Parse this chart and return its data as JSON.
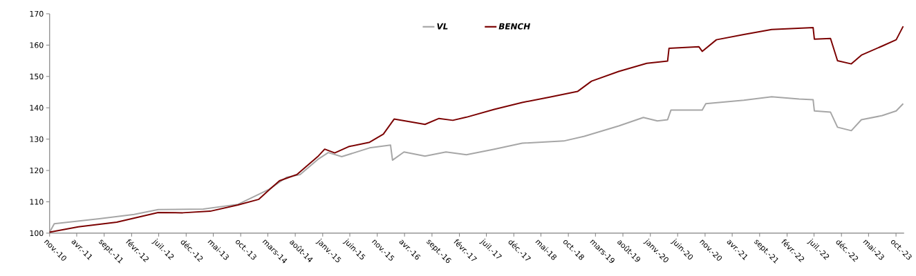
{
  "chart_data": {
    "type": "line",
    "legend": "top",
    "grid": false,
    "marker": "none",
    "line_style": "solid",
    "xlim": [
      "2010-11-01",
      "2023-11-15"
    ],
    "ylim": [
      100,
      170
    ],
    "yticks": [
      100,
      110,
      120,
      130,
      140,
      150,
      160,
      170
    ],
    "xticks": [
      {
        "value": "2010-11",
        "label": "nov.-10"
      },
      {
        "value": "2011-04",
        "label": "avr.-11"
      },
      {
        "value": "2011-09",
        "label": "sept.-11"
      },
      {
        "value": "2012-02",
        "label": "févr.-12"
      },
      {
        "value": "2012-07",
        "label": "juil.-12"
      },
      {
        "value": "2012-12",
        "label": "déc.-12"
      },
      {
        "value": "2013-05",
        "label": "mai-13"
      },
      {
        "value": "2013-10",
        "label": "oct.-13"
      },
      {
        "value": "2014-03",
        "label": "mars-14"
      },
      {
        "value": "2014-08",
        "label": "août-14"
      },
      {
        "value": "2015-01",
        "label": "janv.-15"
      },
      {
        "value": "2015-06",
        "label": "juin-15"
      },
      {
        "value": "2015-11",
        "label": "nov.-15"
      },
      {
        "value": "2016-04",
        "label": "avr.-16"
      },
      {
        "value": "2016-09",
        "label": "sept.-16"
      },
      {
        "value": "2017-02",
        "label": "févr.-17"
      },
      {
        "value": "2017-07",
        "label": "juil.-17"
      },
      {
        "value": "2017-12",
        "label": "déc.-17"
      },
      {
        "value": "2018-05",
        "label": "mai-18"
      },
      {
        "value": "2018-10",
        "label": "oct.-18"
      },
      {
        "value": "2019-03",
        "label": "mars-19"
      },
      {
        "value": "2019-08",
        "label": "août-19"
      },
      {
        "value": "2020-01",
        "label": "janv.-20"
      },
      {
        "value": "2020-06",
        "label": "juin-20"
      },
      {
        "value": "2020-11",
        "label": "nov.-20"
      },
      {
        "value": "2021-04",
        "label": "avr.-21"
      },
      {
        "value": "2021-09",
        "label": "sept.-21"
      },
      {
        "value": "2022-02",
        "label": "févr.-22"
      },
      {
        "value": "2022-07",
        "label": "juil.-22"
      },
      {
        "value": "2022-12",
        "label": "déc.-22"
      },
      {
        "value": "2023-05",
        "label": "mai-23"
      },
      {
        "value": "2023-10",
        "label": "oct.-23"
      }
    ],
    "series": [
      {
        "name": "VL",
        "color": "#a6a6a6",
        "x": [
          "2010-11-01",
          "2010-11-27",
          "2011-08-05",
          "2012-02-15",
          "2012-06-28",
          "2013-03-06",
          "2013-09-16",
          "2014-03-08",
          "2014-06-13",
          "2014-08-28",
          "2014-12-04",
          "2015-02-01",
          "2015-04-17",
          "2015-09-19",
          "2016-01-14",
          "2016-01-25",
          "2016-03-29",
          "2016-07-24",
          "2016-11-18",
          "2017-03-12",
          "2017-08-14",
          "2018-01-17",
          "2018-09-05",
          "2018-12-29",
          "2019-07-09",
          "2019-11-23",
          "2020-02-09",
          "2020-04-06",
          "2020-04-25",
          "2020-10-16",
          "2020-11-05",
          "2021-06-05",
          "2021-11-07",
          "2022-04-09",
          "2022-06-26",
          "2022-07-03",
          "2022-10-01",
          "2022-11-09",
          "2023-01-25",
          "2023-03-22",
          "2023-07-16",
          "2023-10-02",
          "2023-11-10"
        ],
        "values": [
          100.3,
          103,
          104.6,
          106,
          107.5,
          107.7,
          109.2,
          114,
          117.8,
          118.7,
          123.5,
          125.7,
          124.4,
          127.2,
          128.1,
          123.3,
          125.9,
          124.6,
          125.9,
          125,
          126.8,
          128.7,
          129.4,
          130.9,
          134.2,
          136.9,
          135.8,
          136.2,
          139.3,
          139.3,
          141.3,
          142.4,
          143.5,
          142.8,
          142.6,
          139,
          138.6,
          133.8,
          132.7,
          136.2,
          137.5,
          139,
          141.3
        ]
      },
      {
        "name": "BENCH",
        "color": "#7b0000",
        "x": [
          "2010-11-01",
          "2011-04-10",
          "2011-11-10",
          "2012-06-28",
          "2012-11-12",
          "2013-04-14",
          "2013-09-16",
          "2014-01-10",
          "2014-03-08",
          "2014-05-05",
          "2014-08-10",
          "2014-09-18",
          "2014-12-04",
          "2015-01-12",
          "2015-03-09",
          "2015-05-25",
          "2015-09-19",
          "2015-12-05",
          "2016-02-03",
          "2016-05-08",
          "2016-07-24",
          "2016-10-10",
          "2016-12-26",
          "2017-03-12",
          "2017-08-14",
          "2018-01-17",
          "2018-06-19",
          "2018-11-21",
          "2019-02-07",
          "2019-07-09",
          "2019-12-12",
          "2020-04-06",
          "2020-04-14",
          "2020-09-27",
          "2020-10-16",
          "2021-01-03",
          "2021-06-05",
          "2021-11-07",
          "2022-06-26",
          "2022-07-03",
          "2022-10-01",
          "2022-11-09",
          "2023-01-25",
          "2023-03-22",
          "2023-07-16",
          "2023-10-02",
          "2023-11-10"
        ],
        "values": [
          100.3,
          102,
          103.5,
          106.6,
          106.5,
          107,
          109,
          110.8,
          113.8,
          116.7,
          118.7,
          120.6,
          124.4,
          126.8,
          125.6,
          127.6,
          129,
          131.6,
          136.4,
          135.5,
          134.7,
          136.6,
          136,
          137,
          139.5,
          141.7,
          143.4,
          145.2,
          148.5,
          151.6,
          154.2,
          154.9,
          159,
          159.5,
          158,
          161.7,
          163.4,
          165,
          165.6,
          161.9,
          162.1,
          155,
          154,
          156.8,
          159.7,
          161.7,
          166
        ]
      }
    ]
  }
}
